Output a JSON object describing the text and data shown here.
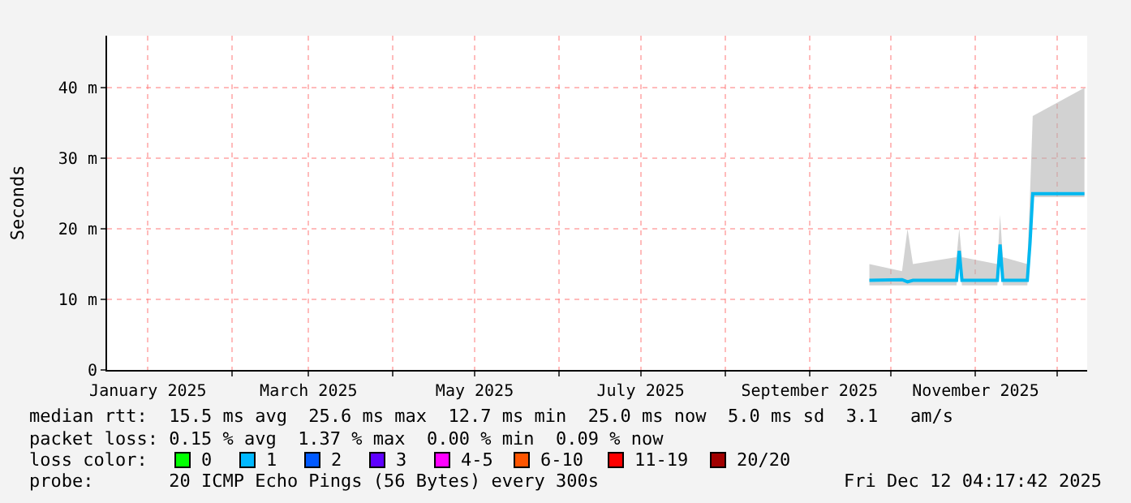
{
  "chart_data": {
    "type": "line",
    "ylabel": "Seconds",
    "xlim": [
      "2024-12-17",
      "2025-12-12"
    ],
    "xticks": [
      {
        "value": "2025-01-01",
        "label": "January 2025"
      },
      {
        "value": "2025-02-01",
        "label": null
      },
      {
        "value": "2025-03-01",
        "label": "March 2025"
      },
      {
        "value": "2025-04-01",
        "label": null
      },
      {
        "value": "2025-05-01",
        "label": "May 2025"
      },
      {
        "value": "2025-06-01",
        "label": null
      },
      {
        "value": "2025-07-01",
        "label": "July 2025"
      },
      {
        "value": "2025-08-01",
        "label": null
      },
      {
        "value": "2025-09-01",
        "label": "September 2025"
      },
      {
        "value": "2025-10-01",
        "label": null
      },
      {
        "value": "2025-11-01",
        "label": "November 2025"
      },
      {
        "value": "2025-12-01",
        "label": null
      }
    ],
    "ylim": [
      0,
      47.4
    ],
    "yticks": [
      {
        "value": 0,
        "label": "0"
      },
      {
        "value": 10,
        "label": "10 m"
      },
      {
        "value": 20,
        "label": "20 m"
      },
      {
        "value": 30,
        "label": "30 m"
      },
      {
        "value": 40,
        "label": "40 m"
      }
    ],
    "grid": true,
    "marker": "none",
    "series": [
      {
        "color": "#00b8f0",
        "x": [
          "2025-09-23",
          "2025-10-05",
          "2025-10-07",
          "2025-10-09",
          "2025-10-25",
          "2025-10-26",
          "2025-10-27",
          "2025-11-09",
          "2025-11-10",
          "2025-11-11",
          "2025-11-20",
          "2025-11-21",
          "2025-11-22",
          "2025-12-11"
        ],
        "values": [
          12.7,
          12.8,
          12.5,
          12.7,
          12.7,
          16.9,
          12.7,
          12.7,
          17.8,
          12.7,
          12.7,
          18,
          25,
          25
        ],
        "lower": [
          12,
          12,
          12,
          12,
          12,
          15.5,
          12,
          12,
          16,
          12,
          12,
          16,
          24.5,
          24.5
        ],
        "upper": [
          15,
          14,
          20,
          15,
          16,
          20,
          16,
          15,
          22,
          16,
          15,
          25,
          36,
          40
        ]
      }
    ],
    "annotations": [
      "median rtt:  15.5 ms avg  25.6 ms max  12.7 ms min  25.0 ms now  5.0 ms sd  3.1   am/s",
      "packet loss: 0.15 % avg  1.37 % max  0.00 % min  0.09 % now",
      "loss color:",
      "0",
      "1",
      "2",
      "3",
      "4-5",
      "6-10",
      "11-19",
      "20/20",
      "probe:       20 ICMP Echo Pings (56 Bytes) every 300s",
      "Fri Dec 12 04:17:42 2025"
    ]
  }
}
